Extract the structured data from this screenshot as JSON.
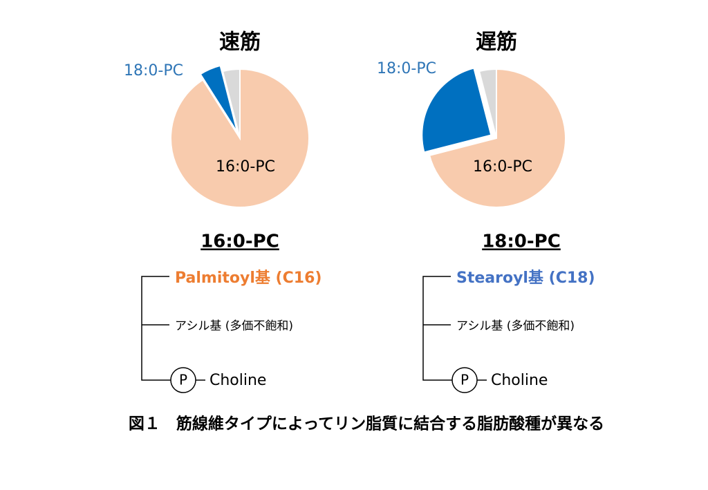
{
  "chart_data": [
    {
      "type": "pie",
      "title": "速筋",
      "categories": [
        "16:0-PC",
        "18:0-PC",
        null
      ],
      "values": [
        91,
        5,
        4
      ],
      "colors": [
        "#f8cbad",
        "#0070c0",
        "#d9d9d9"
      ],
      "label_colors": [
        "#000000",
        "#2e75b6",
        null
      ],
      "explode": 1
    },
    {
      "type": "pie",
      "title": "遅筋",
      "categories": [
        "16:0-PC",
        "18:0-PC",
        null
      ],
      "values": [
        71,
        25,
        4
      ],
      "colors": [
        "#f8cbad",
        "#0070c0",
        "#d9d9d9"
      ],
      "label_colors": [
        "#000000",
        "#2e75b6",
        null
      ],
      "explode": 1
    }
  ],
  "structures": [
    {
      "title": "16:0-PC",
      "chain1": "Palmitoyl基 (C16)",
      "chain1_color": "#ed7d31",
      "chain2": "アシル基 (多価不飽和)",
      "phosphate": "P",
      "headgroup": "Choline"
    },
    {
      "title": "18:0-PC",
      "chain1": "Stearoyl基 (C18)",
      "chain1_color": "#4472c4",
      "chain2": "アシル基 (多価不飽和)",
      "phosphate": "P",
      "headgroup": "Choline"
    }
  ],
  "caption": "図１　筋線維タイプによってリン脂質に結合する脂肪酸種が異なる"
}
